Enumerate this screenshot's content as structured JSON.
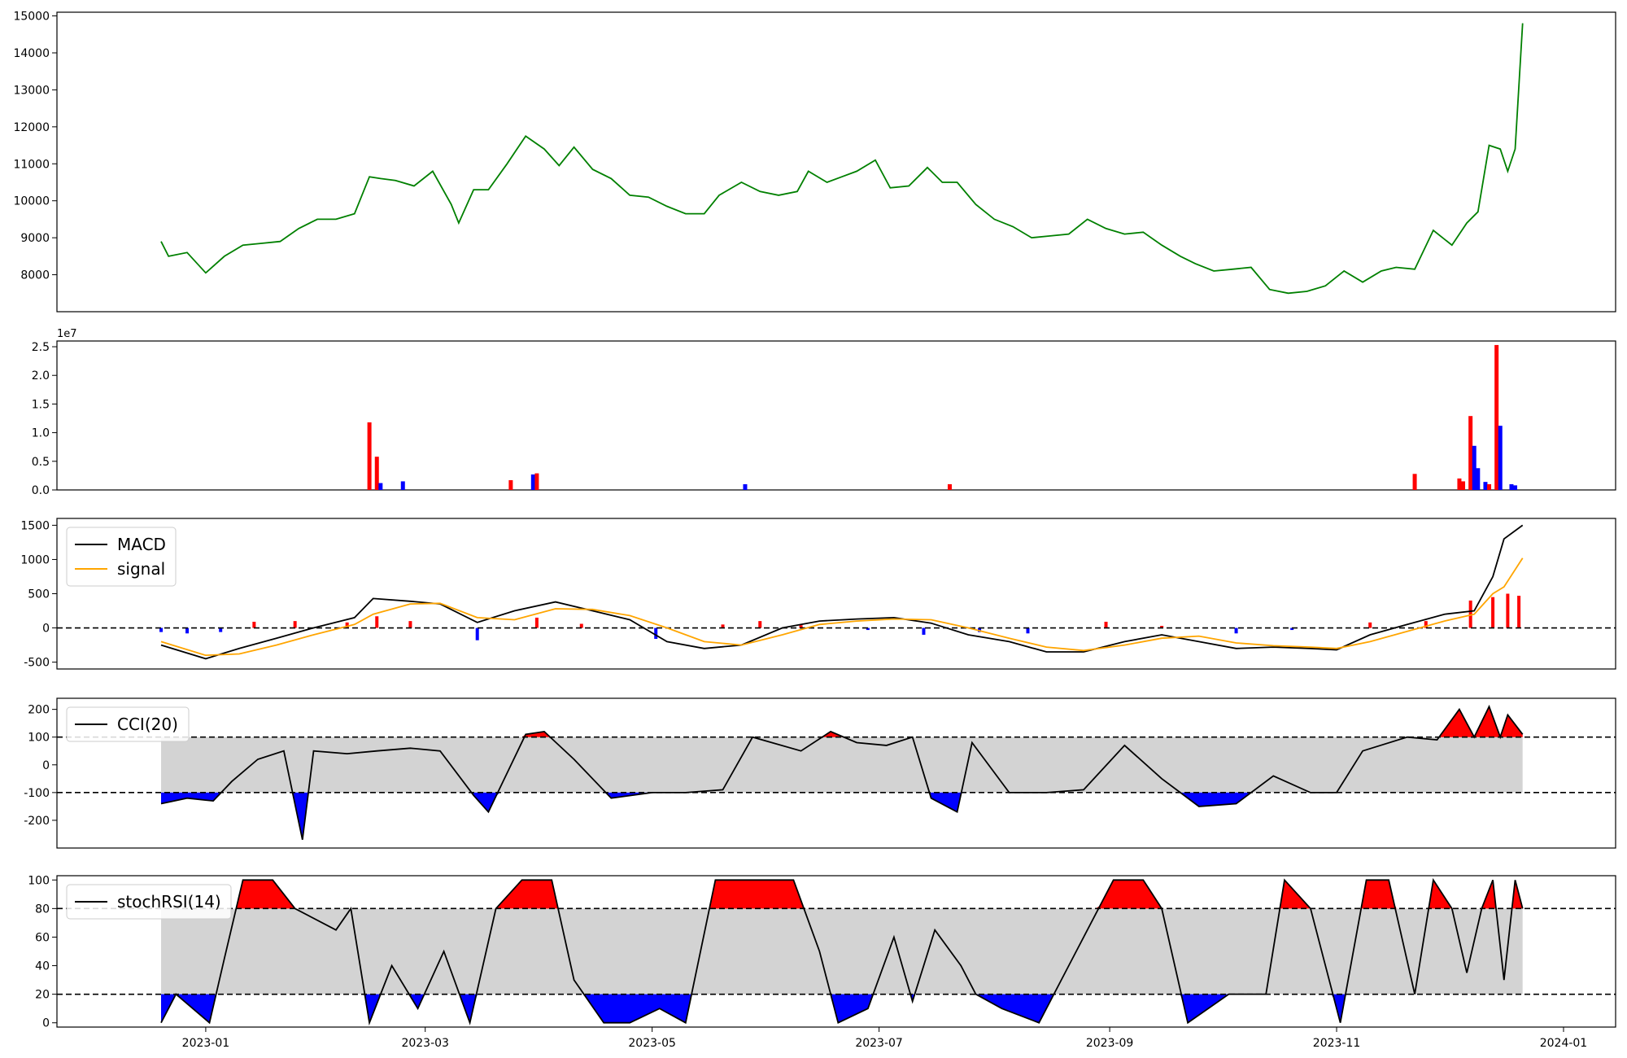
{
  "chart_data": [
    {
      "type": "line",
      "panel": "price",
      "ylim": [
        7000,
        15100
      ],
      "yticks": [
        8000,
        9000,
        10000,
        11000,
        12000,
        13000,
        14000,
        15000
      ],
      "color": "#008000",
      "series": [
        {
          "x": [
            "2022-12-20",
            "2022-12-22",
            "2022-12-27",
            "2023-01-01",
            "2023-01-06",
            "2023-01-11",
            "2023-01-16",
            "2023-01-21",
            "2023-01-26",
            "2023-01-31",
            "2023-02-05",
            "2023-02-10",
            "2023-02-14",
            "2023-02-17",
            "2023-02-21",
            "2023-02-26",
            "2023-03-03",
            "2023-03-08",
            "2023-03-10",
            "2023-03-14",
            "2023-03-18",
            "2023-03-23",
            "2023-03-28",
            "2023-04-02",
            "2023-04-06",
            "2023-04-10",
            "2023-04-15",
            "2023-04-20",
            "2023-04-25",
            "2023-04-30",
            "2023-05-05",
            "2023-05-10",
            "2023-05-15",
            "2023-05-19",
            "2023-05-25",
            "2023-05-30",
            "2023-06-04",
            "2023-06-09",
            "2023-06-12",
            "2023-06-17",
            "2023-06-21",
            "2023-06-25",
            "2023-06-30",
            "2023-07-04",
            "2023-07-09",
            "2023-07-14",
            "2023-07-18",
            "2023-07-22",
            "2023-07-27",
            "2023-08-01",
            "2023-08-06",
            "2023-08-11",
            "2023-08-16",
            "2023-08-21",
            "2023-08-26",
            "2023-08-31",
            "2023-09-05",
            "2023-09-10",
            "2023-09-15",
            "2023-09-20",
            "2023-09-24",
            "2023-09-29",
            "2023-10-04",
            "2023-10-09",
            "2023-10-14",
            "2023-10-19",
            "2023-10-24",
            "2023-10-29",
            "2023-11-03",
            "2023-11-08",
            "2023-11-13",
            "2023-11-17",
            "2023-11-22",
            "2023-11-27",
            "2023-12-02",
            "2023-12-06",
            "2023-12-09",
            "2023-12-12",
            "2023-12-15",
            "2023-12-17",
            "2023-12-19",
            "2023-12-21"
          ],
          "y": [
            8900,
            8500,
            8600,
            8050,
            8500,
            8800,
            8850,
            8900,
            9250,
            9500,
            9500,
            9650,
            10650,
            10600,
            10550,
            10400,
            10800,
            9900,
            9400,
            10300,
            10300,
            11000,
            11750,
            11400,
            10950,
            11450,
            10850,
            10600,
            10150,
            10100,
            9850,
            9650,
            9650,
            10150,
            10500,
            10250,
            10150,
            10250,
            10800,
            10500,
            10650,
            10800,
            11100,
            10350,
            10400,
            10900,
            10500,
            10500,
            9900,
            9500,
            9300,
            9000,
            9050,
            9100,
            9500,
            9250,
            9100,
            9150,
            8800,
            8500,
            8300,
            8100,
            8150,
            8200,
            7600,
            7500,
            7550,
            7700,
            8100,
            7800,
            8100,
            8200,
            8150,
            9200,
            8800,
            9400,
            9700,
            11500,
            11400,
            10800,
            11400,
            14800
          ]
        }
      ]
    },
    {
      "type": "bar",
      "panel": "volume",
      "multiplier_label": "1e7",
      "ylim": [
        0,
        2.6
      ],
      "yticks": [
        0.0,
        0.5,
        1.0,
        1.5,
        2.0,
        2.5
      ],
      "colors": {
        "up": "#ff0000",
        "down": "#0000ff"
      },
      "bars": [
        {
          "date": "2023-02-14",
          "value": 1.18,
          "dir": "up"
        },
        {
          "date": "2023-02-16",
          "value": 0.58,
          "dir": "up"
        },
        {
          "date": "2023-02-17",
          "value": 0.12,
          "dir": "down"
        },
        {
          "date": "2023-02-23",
          "value": 0.15,
          "dir": "down"
        },
        {
          "date": "2023-03-24",
          "value": 0.17,
          "dir": "up"
        },
        {
          "date": "2023-03-30",
          "value": 0.27,
          "dir": "down"
        },
        {
          "date": "2023-03-31",
          "value": 0.29,
          "dir": "up"
        },
        {
          "date": "2023-05-26",
          "value": 0.1,
          "dir": "down"
        },
        {
          "date": "2023-07-20",
          "value": 0.1,
          "dir": "up"
        },
        {
          "date": "2023-11-22",
          "value": 0.28,
          "dir": "up"
        },
        {
          "date": "2023-12-04",
          "value": 0.2,
          "dir": "up"
        },
        {
          "date": "2023-12-05",
          "value": 0.15,
          "dir": "up"
        },
        {
          "date": "2023-12-07",
          "value": 1.29,
          "dir": "up"
        },
        {
          "date": "2023-12-08",
          "value": 0.77,
          "dir": "down"
        },
        {
          "date": "2023-12-09",
          "value": 0.38,
          "dir": "down"
        },
        {
          "date": "2023-12-11",
          "value": 0.14,
          "dir": "down"
        },
        {
          "date": "2023-12-12",
          "value": 0.1,
          "dir": "up"
        },
        {
          "date": "2023-12-14",
          "value": 2.53,
          "dir": "up"
        },
        {
          "date": "2023-12-15",
          "value": 1.12,
          "dir": "down"
        },
        {
          "date": "2023-12-18",
          "value": 0.1,
          "dir": "down"
        },
        {
          "date": "2023-12-19",
          "value": 0.08,
          "dir": "down"
        }
      ]
    },
    {
      "type": "line",
      "panel": "macd",
      "ylim": [
        -600,
        1600
      ],
      "yticks": [
        -500,
        0,
        500,
        1000,
        1500
      ],
      "legend": {
        "placement": "upper-left"
      },
      "reference_line": 0,
      "histogram_colors": {
        "positive": "#ff0000",
        "negative": "#0000ff"
      },
      "series": [
        {
          "name": "MACD",
          "color": "#000000",
          "x": [
            "2022-12-20",
            "2023-01-01",
            "2023-01-10",
            "2023-01-20",
            "2023-01-30",
            "2023-02-10",
            "2023-02-15",
            "2023-02-25",
            "2023-03-05",
            "2023-03-15",
            "2023-03-25",
            "2023-04-05",
            "2023-04-15",
            "2023-04-25",
            "2023-05-05",
            "2023-05-15",
            "2023-05-25",
            "2023-06-05",
            "2023-06-15",
            "2023-06-25",
            "2023-07-05",
            "2023-07-15",
            "2023-07-25",
            "2023-08-05",
            "2023-08-15",
            "2023-08-25",
            "2023-09-05",
            "2023-09-15",
            "2023-09-25",
            "2023-10-05",
            "2023-10-15",
            "2023-10-25",
            "2023-11-01",
            "2023-11-10",
            "2023-11-20",
            "2023-11-30",
            "2023-12-08",
            "2023-12-13",
            "2023-12-16",
            "2023-12-21"
          ],
          "y": [
            -250,
            -450,
            -300,
            -150,
            0,
            150,
            430,
            390,
            350,
            80,
            250,
            380,
            250,
            120,
            -200,
            -300,
            -250,
            0,
            100,
            130,
            150,
            70,
            -100,
            -200,
            -350,
            -350,
            -200,
            -100,
            -200,
            -300,
            -280,
            -300,
            -320,
            -100,
            50,
            200,
            250,
            750,
            1300,
            1500
          ]
        },
        {
          "name": "signal",
          "color": "#ffa500",
          "x": [
            "2022-12-20",
            "2023-01-01",
            "2023-01-10",
            "2023-01-20",
            "2023-01-30",
            "2023-02-10",
            "2023-02-15",
            "2023-02-25",
            "2023-03-05",
            "2023-03-15",
            "2023-03-25",
            "2023-04-05",
            "2023-04-15",
            "2023-04-25",
            "2023-05-05",
            "2023-05-15",
            "2023-05-25",
            "2023-06-05",
            "2023-06-15",
            "2023-06-25",
            "2023-07-05",
            "2023-07-15",
            "2023-07-25",
            "2023-08-05",
            "2023-08-15",
            "2023-08-25",
            "2023-09-05",
            "2023-09-15",
            "2023-09-25",
            "2023-10-05",
            "2023-10-15",
            "2023-10-25",
            "2023-11-01",
            "2023-11-10",
            "2023-11-20",
            "2023-11-30",
            "2023-12-08",
            "2023-12-13",
            "2023-12-16",
            "2023-12-21"
          ],
          "y": [
            -200,
            -400,
            -380,
            -250,
            -100,
            50,
            200,
            350,
            360,
            150,
            120,
            280,
            270,
            180,
            0,
            -200,
            -250,
            -100,
            50,
            100,
            130,
            120,
            0,
            -150,
            -280,
            -330,
            -250,
            -150,
            -120,
            -220,
            -260,
            -280,
            -300,
            -200,
            -50,
            100,
            200,
            500,
            600,
            1020
          ]
        }
      ],
      "histogram": [
        {
          "date": "2022-12-20",
          "value": -60
        },
        {
          "date": "2022-12-27",
          "value": -80
        },
        {
          "date": "2023-01-05",
          "value": -60
        },
        {
          "date": "2023-01-14",
          "value": 90
        },
        {
          "date": "2023-01-25",
          "value": 100
        },
        {
          "date": "2023-02-08",
          "value": 80
        },
        {
          "date": "2023-02-16",
          "value": 170
        },
        {
          "date": "2023-02-25",
          "value": 100
        },
        {
          "date": "2023-03-15",
          "value": -180
        },
        {
          "date": "2023-03-31",
          "value": 150
        },
        {
          "date": "2023-04-12",
          "value": 60
        },
        {
          "date": "2023-05-02",
          "value": -160
        },
        {
          "date": "2023-05-20",
          "value": 50
        },
        {
          "date": "2023-05-30",
          "value": 100
        },
        {
          "date": "2023-06-10",
          "value": 40
        },
        {
          "date": "2023-06-28",
          "value": -30
        },
        {
          "date": "2023-07-13",
          "value": -100
        },
        {
          "date": "2023-07-28",
          "value": -60
        },
        {
          "date": "2023-08-10",
          "value": -80
        },
        {
          "date": "2023-08-31",
          "value": 90
        },
        {
          "date": "2023-09-15",
          "value": 30
        },
        {
          "date": "2023-10-05",
          "value": -80
        },
        {
          "date": "2023-10-20",
          "value": -30
        },
        {
          "date": "2023-11-10",
          "value": 80
        },
        {
          "date": "2023-11-25",
          "value": 100
        },
        {
          "date": "2023-12-07",
          "value": 400
        },
        {
          "date": "2023-12-13",
          "value": 450
        },
        {
          "date": "2023-12-17",
          "value": 500
        },
        {
          "date": "2023-12-20",
          "value": 470
        }
      ]
    },
    {
      "type": "line",
      "panel": "cci",
      "ylim": [
        -300,
        240
      ],
      "yticks": [
        -200,
        -100,
        0,
        100,
        200
      ],
      "legend": {
        "placement": "upper-left"
      },
      "bands": [
        -100,
        100
      ],
      "fill_colors": {
        "band": "#d3d3d3",
        "above": "#ff0000",
        "below": "#0000ff"
      },
      "series": [
        {
          "name": "CCI(20)",
          "color": "#000000",
          "x": [
            "2022-12-20",
            "2022-12-27",
            "2023-01-03",
            "2023-01-08",
            "2023-01-15",
            "2023-01-22",
            "2023-01-27",
            "2023-01-30",
            "2023-02-08",
            "2023-02-16",
            "2023-02-25",
            "2023-03-05",
            "2023-03-14",
            "2023-03-18",
            "2023-03-28",
            "2023-04-02",
            "2023-04-10",
            "2023-04-20",
            "2023-05-01",
            "2023-05-10",
            "2023-05-20",
            "2023-05-28",
            "2023-06-10",
            "2023-06-18",
            "2023-06-25",
            "2023-07-03",
            "2023-07-10",
            "2023-07-15",
            "2023-07-22",
            "2023-07-26",
            "2023-08-05",
            "2023-08-15",
            "2023-08-25",
            "2023-09-05",
            "2023-09-15",
            "2023-09-25",
            "2023-10-05",
            "2023-10-15",
            "2023-10-25",
            "2023-11-01",
            "2023-11-08",
            "2023-11-20",
            "2023-11-28",
            "2023-12-04",
            "2023-12-08",
            "2023-12-12",
            "2023-12-15",
            "2023-12-17",
            "2023-12-21"
          ],
          "y": [
            -140,
            -120,
            -130,
            -60,
            20,
            50,
            -270,
            50,
            40,
            50,
            60,
            50,
            -110,
            -170,
            110,
            120,
            20,
            -120,
            -100,
            -100,
            -90,
            100,
            50,
            120,
            80,
            70,
            100,
            -120,
            -170,
            80,
            -100,
            -100,
            -90,
            70,
            -50,
            -150,
            -140,
            -40,
            -100,
            -100,
            50,
            100,
            90,
            200,
            100,
            210,
            100,
            180,
            110
          ]
        }
      ]
    },
    {
      "type": "line",
      "panel": "stochrsi",
      "ylim": [
        -3,
        103
      ],
      "yticks": [
        0,
        20,
        40,
        60,
        80,
        100
      ],
      "legend": {
        "placement": "upper-left"
      },
      "bands": [
        20,
        80
      ],
      "fill_colors": {
        "band": "#d3d3d3",
        "above": "#ff0000",
        "below": "#0000ff"
      },
      "series": [
        {
          "name": "stochRSI(14)",
          "color": "#000000",
          "x": [
            "2022-12-20",
            "2022-12-24",
            "2023-01-02",
            "2023-01-06",
            "2023-01-11",
            "2023-01-19",
            "2023-01-25",
            "2023-02-05",
            "2023-02-09",
            "2023-02-14",
            "2023-02-20",
            "2023-02-27",
            "2023-03-06",
            "2023-03-13",
            "2023-03-20",
            "2023-03-27",
            "2023-04-04",
            "2023-04-10",
            "2023-04-18",
            "2023-04-25",
            "2023-05-03",
            "2023-05-10",
            "2023-05-18",
            "2023-05-27",
            "2023-06-08",
            "2023-06-15",
            "2023-06-20",
            "2023-06-28",
            "2023-07-05",
            "2023-07-10",
            "2023-07-16",
            "2023-07-23",
            "2023-07-27",
            "2023-08-03",
            "2023-08-13",
            "2023-08-21",
            "2023-09-02",
            "2023-09-10",
            "2023-09-15",
            "2023-09-22",
            "2023-10-03",
            "2023-10-13",
            "2023-10-18",
            "2023-10-25",
            "2023-11-02",
            "2023-11-09",
            "2023-11-15",
            "2023-11-22",
            "2023-11-27",
            "2023-12-02",
            "2023-12-06",
            "2023-12-10",
            "2023-12-13",
            "2023-12-16",
            "2023-12-19",
            "2023-12-21"
          ],
          "y": [
            0,
            20,
            0,
            45,
            100,
            100,
            80,
            65,
            80,
            0,
            40,
            10,
            50,
            0,
            80,
            100,
            100,
            30,
            0,
            0,
            10,
            0,
            100,
            100,
            100,
            50,
            0,
            10,
            60,
            15,
            65,
            40,
            20,
            10,
            0,
            40,
            100,
            100,
            80,
            0,
            20,
            20,
            100,
            80,
            0,
            100,
            100,
            20,
            100,
            80,
            35,
            80,
            100,
            30,
            100,
            80
          ]
        }
      ]
    }
  ],
  "x_axis": {
    "ticks": [
      {
        "date": "2023-01-01",
        "label": "2023-01"
      },
      {
        "date": "2023-03-01",
        "label": "2023-03"
      },
      {
        "date": "2023-05-01",
        "label": "2023-05"
      },
      {
        "date": "2023-07-01",
        "label": "2023-07"
      },
      {
        "date": "2023-09-01",
        "label": "2023-09"
      },
      {
        "date": "2023-11-01",
        "label": "2023-11"
      },
      {
        "date": "2024-01-01",
        "label": "2024-01"
      }
    ],
    "range": [
      "2022-11-22",
      "2024-01-15"
    ]
  }
}
